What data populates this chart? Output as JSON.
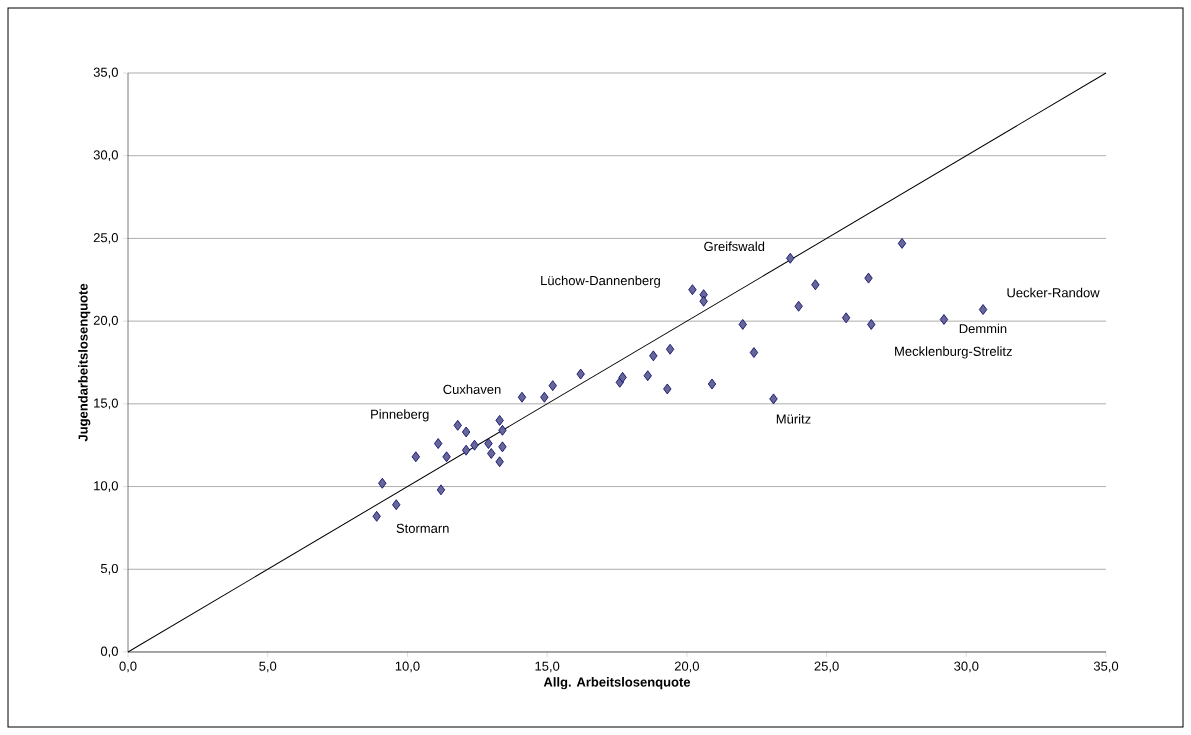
{
  "chart_data": {
    "type": "scatter",
    "xlabel": "Allg. Arbeitslosenquote",
    "ylabel": "Jugendarbeitslosenquote",
    "xlim": [
      0,
      35
    ],
    "ylim": [
      0,
      35
    ],
    "xticks": [
      {
        "value": 0,
        "label": "0,0"
      },
      {
        "value": 5,
        "label": "5,0"
      },
      {
        "value": 10,
        "label": "10,0"
      },
      {
        "value": 15,
        "label": "15,0"
      },
      {
        "value": 20,
        "label": "20,0"
      },
      {
        "value": 25,
        "label": "25,0"
      },
      {
        "value": 30,
        "label": "30,0"
      },
      {
        "value": 35,
        "label": "35,0"
      }
    ],
    "yticks": [
      {
        "value": 0,
        "label": "0,0"
      },
      {
        "value": 5,
        "label": "5,0"
      },
      {
        "value": 10,
        "label": "10,0"
      },
      {
        "value": 15,
        "label": "15,0"
      },
      {
        "value": 20,
        "label": "20,0"
      },
      {
        "value": 25,
        "label": "25,0"
      },
      {
        "value": 30,
        "label": "30,0"
      },
      {
        "value": 35,
        "label": "35,0"
      }
    ],
    "grid": "y",
    "marker": "diamond",
    "series": [
      {
        "color": "#666699",
        "x": [
          8.9,
          9.1,
          9.6,
          10.3,
          11.1,
          11.4,
          11.2,
          11.8,
          12.1,
          12.1,
          12.4,
          12.9,
          13.0,
          13.3,
          13.4,
          13.4,
          13.3,
          14.1,
          14.9,
          15.2,
          16.2,
          17.6,
          17.7,
          18.6,
          18.8,
          19.4,
          19.3,
          20.9,
          20.2,
          20.6,
          20.6,
          22.0,
          22.4,
          23.1,
          23.7,
          24.6,
          24.0,
          27.7,
          26.5,
          25.7,
          26.6,
          29.2,
          30.6
        ],
        "values": [
          8.2,
          10.2,
          8.9,
          11.8,
          12.6,
          11.8,
          9.8,
          13.7,
          13.3,
          12.2,
          12.5,
          12.6,
          12.0,
          11.5,
          12.4,
          13.4,
          14.0,
          15.4,
          15.4,
          16.1,
          16.8,
          16.3,
          16.6,
          16.7,
          17.9,
          18.3,
          15.9,
          16.2,
          21.9,
          21.6,
          21.2,
          19.8,
          18.1,
          15.3,
          23.8,
          22.2,
          20.9,
          24.7,
          22.6,
          20.2,
          19.8,
          20.1,
          20.7
        ]
      },
      {
        "type": "line",
        "color": "#000000",
        "marker": "none",
        "x": [
          0,
          35
        ],
        "values": [
          0,
          35
        ]
      }
    ],
    "annotations": [
      {
        "text": "Stormarn",
        "x": 8.9,
        "y": 8.2
      },
      {
        "text": "Pinneberg",
        "x": 11.8,
        "y": 13.7
      },
      {
        "text": "Cuxhaven",
        "x": 14.1,
        "y": 15.4
      },
      {
        "text": "Lüchow-Dannenberg",
        "x": 20.2,
        "y": 21.9
      },
      {
        "text": "Greifswald",
        "x": 23.7,
        "y": 23.8
      },
      {
        "text": "Müritz",
        "x": 23.1,
        "y": 15.3
      },
      {
        "text": "Uecker-Randow",
        "x": 30.6,
        "y": 20.7
      },
      {
        "text": "Demmin",
        "x": 29.2,
        "y": 20.1
      },
      {
        "text": "Mecklenburg-Strelitz",
        "x": 26.6,
        "y": 19.8
      }
    ]
  }
}
